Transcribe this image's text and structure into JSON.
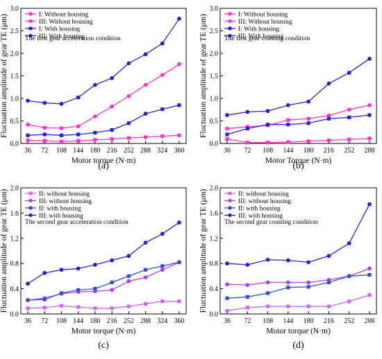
{
  "chart_data": [
    {
      "type": "line",
      "panel_label": "(a)",
      "annotation": "The first gear acceleration condition",
      "xlabel": "Motor torque (N·m)",
      "ylabel": "Fluctuation amplitude of  gear TE (μm)",
      "x": [
        36,
        72,
        108,
        144,
        180,
        216,
        252,
        288,
        324,
        360
      ],
      "x_ticks": [
        "36",
        "72",
        "108",
        "144",
        "180",
        "216",
        "252",
        "288",
        "324",
        "360"
      ],
      "ylim": [
        0,
        3.0
      ],
      "y_ticks": [
        "0.0",
        "0.5",
        "1.0",
        "1.5",
        "2.0",
        "2.5",
        "3.0"
      ],
      "grid": false,
      "legend": "top-left",
      "series": [
        {
          "name": "I: Without housing",
          "color": "#ff33cc",
          "marker": "square",
          "values": [
            0.07,
            0.06,
            0.04,
            0.06,
            0.08,
            0.1,
            0.12,
            0.14,
            0.16,
            0.18
          ]
        },
        {
          "name": "III: Without housing",
          "color": "#ff33cc",
          "marker": "circle",
          "values": [
            0.42,
            0.35,
            0.34,
            0.38,
            0.6,
            0.82,
            1.05,
            1.3,
            1.52,
            1.76
          ]
        },
        {
          "name": "I: With housing",
          "color": "#2323d6",
          "marker": "square",
          "values": [
            0.18,
            0.2,
            0.18,
            0.2,
            0.24,
            0.3,
            0.45,
            0.66,
            0.76,
            0.85
          ]
        },
        {
          "name": "III: With housing",
          "color": "#2323d6",
          "marker": "circle",
          "values": [
            0.95,
            0.9,
            0.88,
            1.02,
            1.3,
            1.45,
            1.78,
            1.98,
            2.22,
            2.77
          ]
        }
      ]
    },
    {
      "type": "line",
      "panel_label": "(b)",
      "annotation": "The first gear coasting condition",
      "xlabel": "Motor Torque (N·m)",
      "ylabel": "Fluctuation amplitude of gear TE (μm)",
      "x": [
        36,
        72,
        108,
        144,
        180,
        216,
        252,
        288
      ],
      "x_ticks": [
        "36",
        "72",
        "108",
        "144",
        "180",
        "216",
        "252",
        "288"
      ],
      "ylim": [
        0,
        3.0
      ],
      "y_ticks": [
        "0.0",
        "0.5",
        "1.0",
        "1.5",
        "2.0",
        "2.5",
        "3.0"
      ],
      "grid": false,
      "legend": "top-left",
      "series": [
        {
          "name": "I: Without housing",
          "color": "#ff33cc",
          "marker": "square",
          "values": [
            0.1,
            0.02,
            0.02,
            0.03,
            0.05,
            0.07,
            0.09,
            0.11
          ]
        },
        {
          "name": "III: Without housing",
          "color": "#ff33cc",
          "marker": "circle",
          "values": [
            0.33,
            0.37,
            0.4,
            0.52,
            0.55,
            0.62,
            0.75,
            0.85
          ]
        },
        {
          "name": "I: With housing",
          "color": "#2323d6",
          "marker": "square",
          "values": [
            0.2,
            0.33,
            0.42,
            0.42,
            0.45,
            0.55,
            0.58,
            0.63
          ]
        },
        {
          "name": "III: With housing",
          "color": "#2323d6",
          "marker": "circle",
          "values": [
            0.63,
            0.7,
            0.72,
            0.85,
            0.93,
            1.33,
            1.57,
            1.88
          ]
        }
      ]
    },
    {
      "type": "line",
      "panel_label": "(c)",
      "annotation": "The second gear acceleration condition",
      "xlabel": "Motor torque (N·m)",
      "ylabel": "Fluctuation amplitude of gear TE (μm)",
      "x": [
        36,
        72,
        108,
        144,
        180,
        216,
        252,
        288,
        324,
        360
      ],
      "x_ticks": [
        "36",
        "72",
        "108",
        "144",
        "180",
        "216",
        "252",
        "288",
        "324",
        "360"
      ],
      "ylim": [
        0,
        2.0
      ],
      "y_ticks": [
        "0.0",
        "0.4",
        "0.8",
        "1.2",
        "1.6",
        "2.0"
      ],
      "grid": false,
      "legend": "top-left",
      "series": [
        {
          "name": "II: without housing",
          "color": "#cc66ff",
          "marker": "square",
          "values": [
            0.09,
            0.1,
            0.13,
            0.11,
            0.09,
            0.09,
            0.12,
            0.16,
            0.2,
            0.2
          ]
        },
        {
          "name": "III: without housing",
          "color": "#b13df0",
          "marker": "circle",
          "values": [
            0.22,
            0.25,
            0.32,
            0.35,
            0.36,
            0.38,
            0.52,
            0.58,
            0.7,
            0.82
          ]
        },
        {
          "name": "II: with housing",
          "color": "#2f4ed8",
          "marker": "square",
          "values": [
            0.22,
            0.23,
            0.33,
            0.38,
            0.4,
            0.5,
            0.6,
            0.7,
            0.76,
            0.82
          ]
        },
        {
          "name": "III: with housing",
          "color": "#2323d6",
          "marker": "circle",
          "values": [
            0.48,
            0.65,
            0.7,
            0.72,
            0.78,
            0.85,
            0.92,
            1.13,
            1.27,
            1.45
          ]
        }
      ]
    },
    {
      "type": "line",
      "panel_label": "(d)",
      "annotation": "The second gear coasting condition",
      "xlabel": "Motor torque (N·m)",
      "ylabel": "Fluctuation amplitude of gear TE (μm)",
      "x": [
        36,
        72,
        108,
        144,
        180,
        216,
        252,
        288
      ],
      "x_ticks": [
        "36",
        "72",
        "108",
        "144",
        "180",
        "216",
        "252",
        "288"
      ],
      "ylim": [
        0,
        2.0
      ],
      "y_ticks": [
        "0.0",
        "0.4",
        "0.8",
        "1.2",
        "1.6",
        "2.0"
      ],
      "grid": false,
      "legend": "top-left",
      "series": [
        {
          "name": "II: without housing",
          "color": "#cc66ff",
          "marker": "square",
          "values": [
            0.05,
            0.1,
            0.12,
            0.12,
            0.12,
            0.12,
            0.2,
            0.3
          ]
        },
        {
          "name": "III: without housing",
          "color": "#b13df0",
          "marker": "circle",
          "values": [
            0.47,
            0.46,
            0.5,
            0.5,
            0.5,
            0.54,
            0.6,
            0.72
          ]
        },
        {
          "name": "II: with housing",
          "color": "#2f4ed8",
          "marker": "square",
          "values": [
            0.25,
            0.27,
            0.33,
            0.42,
            0.43,
            0.5,
            0.6,
            0.62
          ]
        },
        {
          "name": "III: with housing",
          "color": "#2323d6",
          "marker": "circle",
          "values": [
            0.8,
            0.78,
            0.86,
            0.85,
            0.82,
            0.92,
            1.12,
            1.74
          ]
        }
      ]
    }
  ]
}
